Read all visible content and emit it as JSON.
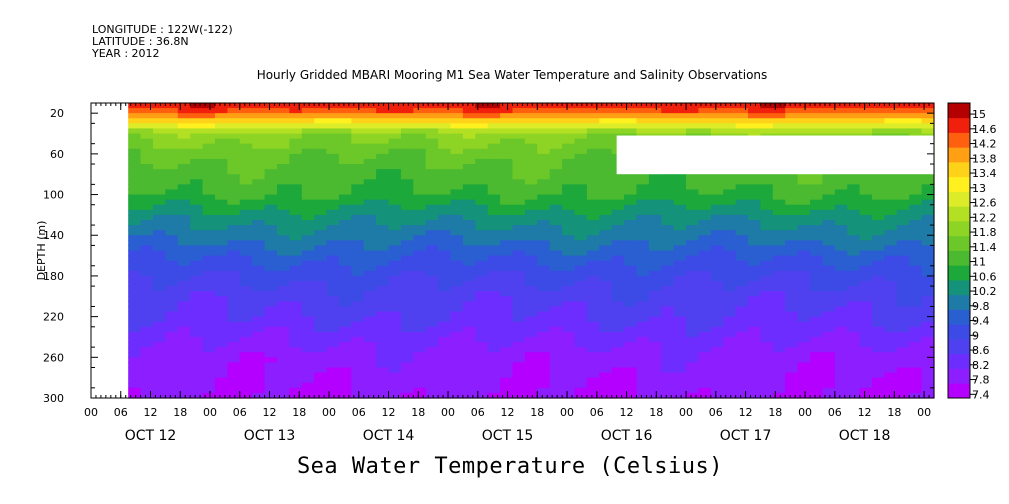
{
  "header": {
    "longitude": "LONGITUDE : 122W(-122)",
    "latitude": "LATITUDE : 36.8N",
    "year": "YEAR : 2012"
  },
  "chart_data": {
    "type": "heatmap",
    "title": "Hourly Gridded MBARI Mooring M1 Sea Water Temperature and Salinity Observations",
    "xlabel": "",
    "ylabel": "DEPTH (m)",
    "colorbar_label": "Sea Water Temperature (Celsius)",
    "x_unit": "hours since OCT 12 00:00",
    "xlim": [
      0,
      170
    ],
    "ylim": [
      300,
      10
    ],
    "y_ticks": [
      20,
      60,
      100,
      140,
      180,
      220,
      260,
      300
    ],
    "x_hour_labels": [
      "00",
      "06",
      "12",
      "18",
      "00",
      "06",
      "12",
      "18",
      "00",
      "06",
      "12",
      "18",
      "00",
      "06",
      "12",
      "18",
      "00",
      "06",
      "12",
      "18",
      "00",
      "06",
      "12",
      "18",
      "00",
      "06",
      "12",
      "18",
      "00"
    ],
    "x_day_labels": [
      "OCT 12",
      "OCT 13",
      "OCT 14",
      "OCT 15",
      "OCT 16",
      "OCT 17",
      "OCT 18"
    ],
    "data_start_hour": 7.5,
    "missing_block": {
      "x_hours": [
        106,
        170
      ],
      "depth_m": [
        42,
        80
      ]
    },
    "colorbar_levels": [
      7.4,
      7.8,
      8.2,
      8.6,
      9,
      9.4,
      9.8,
      10.2,
      10.6,
      11,
      11.4,
      11.8,
      12.2,
      12.6,
      13,
      13.4,
      13.8,
      14.2,
      14.6,
      15
    ],
    "colorbar_labels": [
      "15",
      "14.6",
      "14.2",
      "13.8",
      "13.4",
      "13",
      "12.6",
      "12.2",
      "11.8",
      "11.4",
      "11",
      "10.6",
      "10.2",
      "9.8",
      "9.4",
      "9",
      "8.6",
      "8.2",
      "7.8",
      "7.4"
    ],
    "colors": [
      "#b400ff",
      "#8c1eff",
      "#6e2dff",
      "#5041f0",
      "#3c4be6",
      "#2a5fd2",
      "#1e7aa6",
      "#14937a",
      "#1ca83a",
      "#4cba30",
      "#6cc828",
      "#8ed424",
      "#b4e024",
      "#dcec28",
      "#fff020",
      "#ffd21a",
      "#ffa014",
      "#ff6010",
      "#f0200c",
      "#b40000"
    ],
    "temperature_profile": [
      {
        "depth": 10,
        "temp": 15.0
      },
      {
        "depth": 20,
        "temp": 14.4
      },
      {
        "depth": 30,
        "temp": 13.2
      },
      {
        "depth": 40,
        "temp": 12.0
      },
      {
        "depth": 60,
        "temp": 11.5
      },
      {
        "depth": 80,
        "temp": 11.2
      },
      {
        "depth": 100,
        "temp": 11.0
      },
      {
        "depth": 120,
        "temp": 10.4
      },
      {
        "depth": 140,
        "temp": 10.0
      },
      {
        "depth": 160,
        "temp": 9.5
      },
      {
        "depth": 180,
        "temp": 9.1
      },
      {
        "depth": 200,
        "temp": 8.8
      },
      {
        "depth": 220,
        "temp": 8.6
      },
      {
        "depth": 240,
        "temp": 8.3
      },
      {
        "depth": 260,
        "temp": 8.0
      },
      {
        "depth": 280,
        "temp": 7.9
      },
      {
        "depth": 300,
        "temp": 7.8
      }
    ]
  }
}
